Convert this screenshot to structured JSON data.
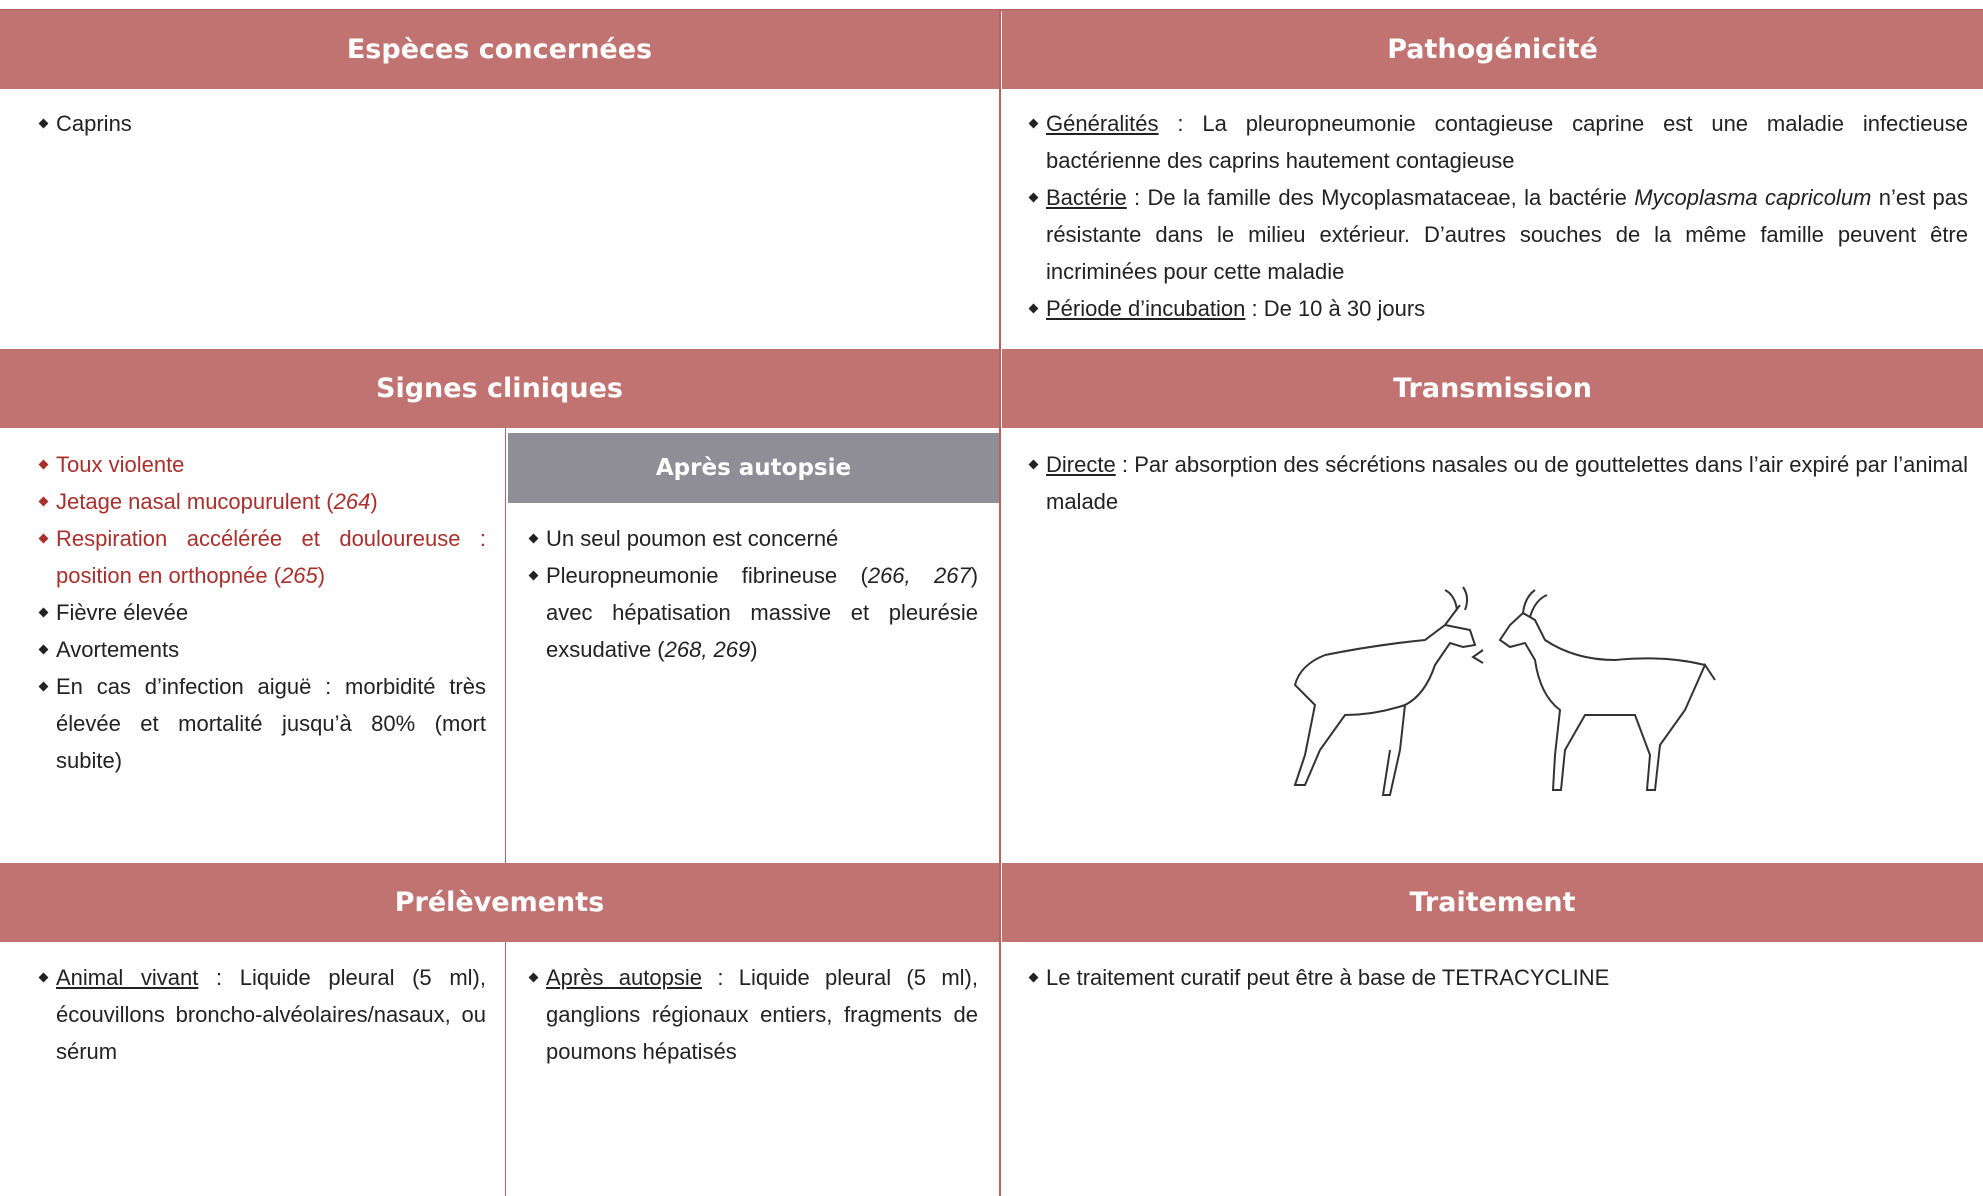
{
  "sections": {
    "especes": {
      "header": "Espèces concernées",
      "items": [
        {
          "runs": [
            "Caprins"
          ]
        }
      ]
    },
    "pathogenicite": {
      "header": "Pathogénicité",
      "items": [
        {
          "runs": [
            {
              "text": "Généralités",
              "style": "underline"
            },
            " : La pleuropneumonie contagieuse caprine est une maladie infectieuse bactérienne des caprins hautement contagieuse"
          ]
        },
        {
          "runs": [
            {
              "text": "Bactérie",
              "style": "underline"
            },
            " : De la famille des Mycoplasmataceae, la bactérie ",
            {
              "text": "Mycoplasma capricolum",
              "style": "italic"
            },
            " n’est pas résistante dans le milieu extérieur. D’autres souches de la même famille peuvent être incriminées pour cette maladie"
          ]
        },
        {
          "runs": [
            {
              "text": "Période d’incubation",
              "style": "underline"
            },
            " : De 10 à 30 jours"
          ]
        }
      ]
    },
    "signes": {
      "header": "Signes cliniques",
      "items": [
        {
          "color": "#a8302c",
          "runs": [
            "Toux violente"
          ]
        },
        {
          "color": "#a8302c",
          "runs": [
            "Jetage nasal mucopurulent (",
            {
              "text": "264",
              "style": "italic"
            },
            ")"
          ]
        },
        {
          "color": "#a8302c",
          "runs": [
            "Respiration accélérée et douloureuse : position en orthopnée (",
            {
              "text": "265",
              "style": "italic"
            },
            ")"
          ]
        },
        {
          "runs": [
            "Fièvre élevée"
          ]
        },
        {
          "runs": [
            "Avortements"
          ]
        },
        {
          "runs": [
            "En cas d’infection aiguë : morbidité très élevée et mortalité jusqu’à 80% (mort subite)"
          ]
        }
      ]
    },
    "autopsie": {
      "header": "Après autopsie",
      "items": [
        {
          "runs": [
            "Un seul poumon est concerné"
          ]
        },
        {
          "runs": [
            "Pleuropneumonie fibrineuse (",
            {
              "text": "266, 267",
              "style": "italic"
            },
            ") avec hépatisation massive et pleurésie exsudative (",
            {
              "text": "268, 269",
              "style": "italic"
            },
            ")"
          ]
        }
      ]
    },
    "transmission": {
      "header": "Transmission",
      "items": [
        {
          "runs": [
            {
              "text": "Directe",
              "style": "underline"
            },
            " : Par absorption des sécrétions nasales ou de gouttelettes dans l’air expiré par l’animal malade"
          ]
        }
      ]
    },
    "prelevements": {
      "header": "Prélèvements",
      "left": [
        {
          "runs": [
            {
              "text": "Animal vivant",
              "style": "underline"
            },
            " : Liquide pleural (5 ml), écouvillons broncho-alvéolaires/nasaux, ou sérum"
          ]
        }
      ],
      "right": [
        {
          "runs": [
            {
              "text": "Après autopsie",
              "style": "underline"
            },
            " : Liquide pleural (5 ml), ganglions régionaux entiers, fragments de poumons hépatisés"
          ]
        }
      ]
    },
    "traitement": {
      "header": "Traitement",
      "items": [
        {
          "runs": [
            "Le traitement curatif peut être à base de TETRACYCLINE"
          ]
        }
      ]
    }
  }
}
